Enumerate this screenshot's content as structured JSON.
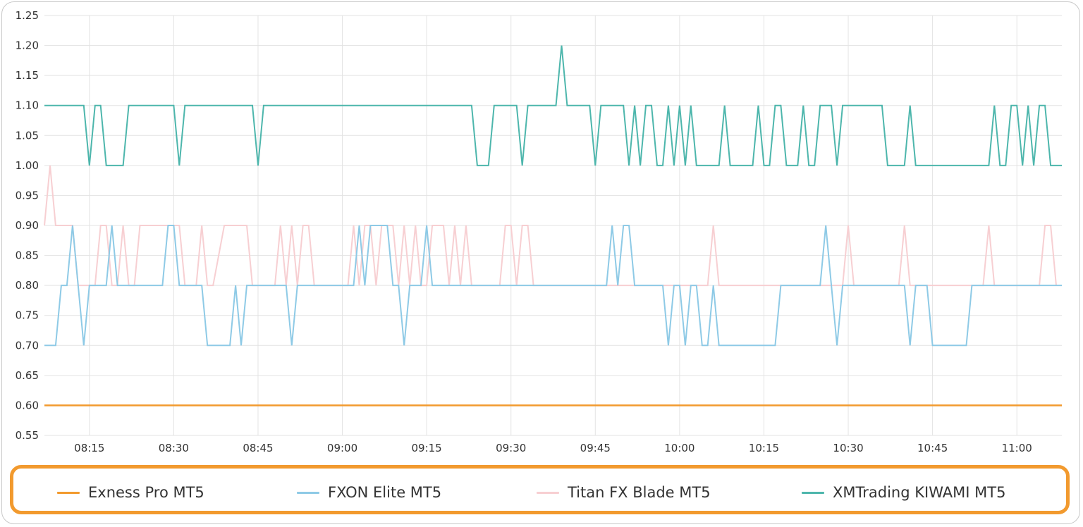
{
  "chart_data": {
    "type": "line",
    "title": "",
    "xlabel": "",
    "ylabel": "",
    "ylim": [
      0.55,
      1.25
    ],
    "y_ticks": [
      "0.55",
      "0.60",
      "0.65",
      "0.70",
      "0.75",
      "0.80",
      "0.85",
      "0.90",
      "0.95",
      "1.00",
      "1.05",
      "1.10",
      "1.15",
      "1.20",
      "1.25"
    ],
    "x_ticks": [
      "08:15",
      "08:30",
      "08:45",
      "09:00",
      "09:15",
      "09:30",
      "09:45",
      "10:00",
      "10:15",
      "10:30",
      "10:45",
      "11:00"
    ],
    "x_range": [
      "08:07",
      "11:08"
    ],
    "grid": true,
    "legend_position": "bottom",
    "series": [
      {
        "name": "Exness Pro MT5",
        "color": "#f29a2e",
        "points": [
          [
            "08:07",
            0.6
          ],
          [
            "11:08",
            0.6
          ]
        ]
      },
      {
        "name": "FXON Elite MT5",
        "color": "#8ecae6",
        "points": [
          [
            "08:07",
            0.7
          ],
          [
            "08:09",
            0.7
          ],
          [
            "08:10",
            0.8
          ],
          [
            "08:11",
            0.8
          ],
          [
            "08:12",
            0.9
          ],
          [
            "08:13",
            0.8
          ],
          [
            "08:14",
            0.7
          ],
          [
            "08:15",
            0.8
          ],
          [
            "08:18",
            0.8
          ],
          [
            "08:19",
            0.9
          ],
          [
            "08:20",
            0.8
          ],
          [
            "08:21",
            0.8
          ],
          [
            "08:22",
            0.8
          ],
          [
            "08:27",
            0.8
          ],
          [
            "08:28",
            0.8
          ],
          [
            "08:29",
            0.9
          ],
          [
            "08:30",
            0.9
          ],
          [
            "08:31",
            0.8
          ],
          [
            "08:32",
            0.8
          ],
          [
            "08:35",
            0.8
          ],
          [
            "08:36",
            0.7
          ],
          [
            "08:40",
            0.7
          ],
          [
            "08:41",
            0.8
          ],
          [
            "08:42",
            0.7
          ],
          [
            "08:43",
            0.8
          ],
          [
            "08:48",
            0.8
          ],
          [
            "08:50",
            0.8
          ],
          [
            "08:51",
            0.7
          ],
          [
            "08:52",
            0.8
          ],
          [
            "08:54",
            0.8
          ],
          [
            "09:00",
            0.8
          ],
          [
            "09:02",
            0.8
          ],
          [
            "09:03",
            0.9
          ],
          [
            "09:04",
            0.8
          ],
          [
            "09:05",
            0.9
          ],
          [
            "09:08",
            0.9
          ],
          [
            "09:09",
            0.8
          ],
          [
            "09:10",
            0.8
          ],
          [
            "09:11",
            0.7
          ],
          [
            "09:12",
            0.8
          ],
          [
            "09:14",
            0.8
          ],
          [
            "09:15",
            0.9
          ],
          [
            "09:16",
            0.8
          ],
          [
            "09:20",
            0.8
          ],
          [
            "09:30",
            0.8
          ],
          [
            "09:33",
            0.8
          ],
          [
            "09:45",
            0.8
          ],
          [
            "09:47",
            0.8
          ],
          [
            "09:48",
            0.9
          ],
          [
            "09:49",
            0.8
          ],
          [
            "09:50",
            0.9
          ],
          [
            "09:51",
            0.9
          ],
          [
            "09:52",
            0.8
          ],
          [
            "09:57",
            0.8
          ],
          [
            "09:58",
            0.7
          ],
          [
            "09:59",
            0.8
          ],
          [
            "10:00",
            0.8
          ],
          [
            "10:01",
            0.7
          ],
          [
            "10:02",
            0.8
          ],
          [
            "10:03",
            0.8
          ],
          [
            "10:04",
            0.7
          ],
          [
            "10:05",
            0.7
          ],
          [
            "10:06",
            0.8
          ],
          [
            "10:07",
            0.7
          ],
          [
            "10:17",
            0.7
          ],
          [
            "10:18",
            0.8
          ],
          [
            "10:25",
            0.8
          ],
          [
            "10:26",
            0.9
          ],
          [
            "10:27",
            0.8
          ],
          [
            "10:28",
            0.7
          ],
          [
            "10:29",
            0.8
          ],
          [
            "10:40",
            0.8
          ],
          [
            "10:41",
            0.7
          ],
          [
            "10:42",
            0.8
          ],
          [
            "10:44",
            0.8
          ],
          [
            "10:45",
            0.7
          ],
          [
            "10:51",
            0.7
          ],
          [
            "10:52",
            0.8
          ],
          [
            "10:56",
            0.8
          ],
          [
            "11:05",
            0.8
          ],
          [
            "11:08",
            0.8
          ]
        ]
      },
      {
        "name": "Titan FX Blade MT5",
        "color": "#f7cfd2",
        "points": [
          [
            "08:07",
            0.9
          ],
          [
            "08:08",
            1.0
          ],
          [
            "08:09",
            0.9
          ],
          [
            "08:12",
            0.9
          ],
          [
            "08:13",
            0.8
          ],
          [
            "08:14",
            0.8
          ],
          [
            "08:16",
            0.8
          ],
          [
            "08:17",
            0.9
          ],
          [
            "08:18",
            0.9
          ],
          [
            "08:19",
            0.8
          ],
          [
            "08:20",
            0.8
          ],
          [
            "08:21",
            0.9
          ],
          [
            "08:22",
            0.8
          ],
          [
            "08:23",
            0.8
          ],
          [
            "08:24",
            0.9
          ],
          [
            "08:31",
            0.9
          ],
          [
            "08:32",
            0.8
          ],
          [
            "08:34",
            0.8
          ],
          [
            "08:35",
            0.9
          ],
          [
            "08:36",
            0.8
          ],
          [
            "08:37",
            0.8
          ],
          [
            "08:39",
            0.9
          ],
          [
            "08:43",
            0.9
          ],
          [
            "08:44",
            0.8
          ],
          [
            "08:48",
            0.8
          ],
          [
            "08:49",
            0.9
          ],
          [
            "08:50",
            0.8
          ],
          [
            "08:51",
            0.9
          ],
          [
            "08:52",
            0.8
          ],
          [
            "08:53",
            0.9
          ],
          [
            "08:54",
            0.9
          ],
          [
            "08:55",
            0.8
          ],
          [
            "09:01",
            0.8
          ],
          [
            "09:02",
            0.9
          ],
          [
            "09:03",
            0.8
          ],
          [
            "09:04",
            0.9
          ],
          [
            "09:05",
            0.9
          ],
          [
            "09:06",
            0.8
          ],
          [
            "09:07",
            0.9
          ],
          [
            "09:09",
            0.9
          ],
          [
            "09:10",
            0.8
          ],
          [
            "09:11",
            0.9
          ],
          [
            "09:12",
            0.8
          ],
          [
            "09:13",
            0.9
          ],
          [
            "09:14",
            0.8
          ],
          [
            "09:15",
            0.8
          ],
          [
            "09:16",
            0.9
          ],
          [
            "09:18",
            0.9
          ],
          [
            "09:19",
            0.8
          ],
          [
            "09:20",
            0.9
          ],
          [
            "09:21",
            0.8
          ],
          [
            "09:22",
            0.9
          ],
          [
            "09:23",
            0.8
          ],
          [
            "09:26",
            0.8
          ],
          [
            "09:28",
            0.8
          ],
          [
            "09:29",
            0.9
          ],
          [
            "09:30",
            0.9
          ],
          [
            "09:31",
            0.8
          ],
          [
            "09:32",
            0.9
          ],
          [
            "09:33",
            0.9
          ],
          [
            "09:34",
            0.8
          ],
          [
            "09:46",
            0.8
          ],
          [
            "10:05",
            0.8
          ],
          [
            "10:06",
            0.9
          ],
          [
            "10:07",
            0.8
          ],
          [
            "10:29",
            0.8
          ],
          [
            "10:30",
            0.9
          ],
          [
            "10:31",
            0.8
          ],
          [
            "10:39",
            0.8
          ],
          [
            "10:40",
            0.9
          ],
          [
            "10:41",
            0.8
          ],
          [
            "10:54",
            0.8
          ],
          [
            "10:55",
            0.9
          ],
          [
            "10:56",
            0.8
          ],
          [
            "11:04",
            0.8
          ],
          [
            "11:05",
            0.9
          ],
          [
            "11:06",
            0.9
          ],
          [
            "11:07",
            0.8
          ]
        ]
      },
      {
        "name": "XMTrading KIWAMI MT5",
        "color": "#4db6ac",
        "points": [
          [
            "08:07",
            1.1
          ],
          [
            "08:14",
            1.1
          ],
          [
            "08:15",
            1.0
          ],
          [
            "08:16",
            1.1
          ],
          [
            "08:17",
            1.1
          ],
          [
            "08:18",
            1.0
          ],
          [
            "08:21",
            1.0
          ],
          [
            "08:22",
            1.1
          ],
          [
            "08:30",
            1.1
          ],
          [
            "08:31",
            1.0
          ],
          [
            "08:32",
            1.1
          ],
          [
            "08:44",
            1.1
          ],
          [
            "08:45",
            1.0
          ],
          [
            "08:46",
            1.1
          ],
          [
            "09:23",
            1.1
          ],
          [
            "09:24",
            1.0
          ],
          [
            "09:26",
            1.0
          ],
          [
            "09:27",
            1.1
          ],
          [
            "09:31",
            1.1
          ],
          [
            "09:32",
            1.0
          ],
          [
            "09:33",
            1.1
          ],
          [
            "09:38",
            1.1
          ],
          [
            "09:39",
            1.2
          ],
          [
            "09:40",
            1.1
          ],
          [
            "09:44",
            1.1
          ],
          [
            "09:45",
            1.0
          ],
          [
            "09:46",
            1.1
          ],
          [
            "09:50",
            1.1
          ],
          [
            "09:51",
            1.0
          ],
          [
            "09:52",
            1.1
          ],
          [
            "09:53",
            1.0
          ],
          [
            "09:54",
            1.1
          ],
          [
            "09:55",
            1.1
          ],
          [
            "09:56",
            1.0
          ],
          [
            "09:57",
            1.0
          ],
          [
            "09:58",
            1.1
          ],
          [
            "09:59",
            1.0
          ],
          [
            "10:00",
            1.1
          ],
          [
            "10:01",
            1.0
          ],
          [
            "10:02",
            1.1
          ],
          [
            "10:03",
            1.0
          ],
          [
            "10:07",
            1.0
          ],
          [
            "10:08",
            1.1
          ],
          [
            "10:09",
            1.0
          ],
          [
            "10:13",
            1.0
          ],
          [
            "10:14",
            1.1
          ],
          [
            "10:15",
            1.0
          ],
          [
            "10:16",
            1.0
          ],
          [
            "10:17",
            1.1
          ],
          [
            "10:18",
            1.1
          ],
          [
            "10:19",
            1.0
          ],
          [
            "10:21",
            1.0
          ],
          [
            "10:22",
            1.1
          ],
          [
            "10:23",
            1.0
          ],
          [
            "10:24",
            1.0
          ],
          [
            "10:25",
            1.1
          ],
          [
            "10:27",
            1.1
          ],
          [
            "10:28",
            1.0
          ],
          [
            "10:29",
            1.1
          ],
          [
            "10:36",
            1.1
          ],
          [
            "10:37",
            1.0
          ],
          [
            "10:40",
            1.0
          ],
          [
            "10:41",
            1.1
          ],
          [
            "10:42",
            1.0
          ],
          [
            "10:55",
            1.0
          ],
          [
            "10:56",
            1.1
          ],
          [
            "10:57",
            1.0
          ],
          [
            "10:58",
            1.0
          ],
          [
            "10:59",
            1.1
          ],
          [
            "11:00",
            1.1
          ],
          [
            "11:01",
            1.0
          ],
          [
            "11:02",
            1.1
          ],
          [
            "11:03",
            1.0
          ],
          [
            "11:04",
            1.1
          ],
          [
            "11:05",
            1.1
          ],
          [
            "11:06",
            1.0
          ],
          [
            "11:08",
            1.0
          ]
        ]
      }
    ]
  }
}
